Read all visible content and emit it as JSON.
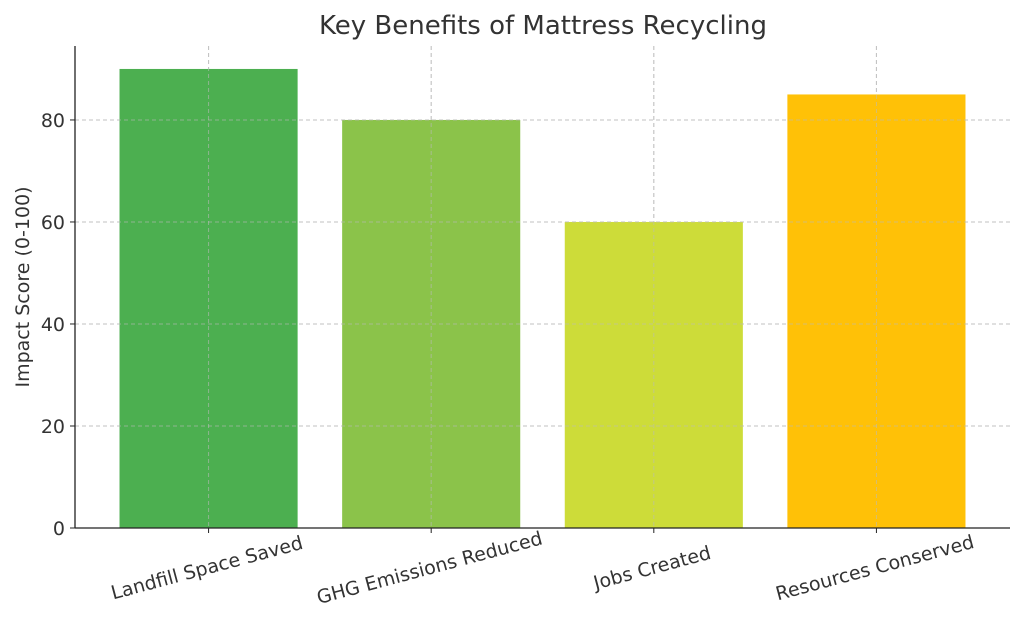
{
  "chart_data": {
    "type": "bar",
    "title": "Key Benefits of Mattress Recycling",
    "xlabel": "",
    "ylabel": "Impact Score (0-100)",
    "categories": [
      "Landfill Space Saved",
      "GHG Emissions Reduced",
      "Jobs Created",
      "Resources Conserved"
    ],
    "values": [
      90,
      80,
      60,
      85
    ],
    "colors": [
      "#4CAF50",
      "#8BC34A",
      "#CDDC39",
      "#FFC107"
    ],
    "ylim": [
      0,
      94.5
    ],
    "yticks": [
      0,
      20,
      40,
      60,
      80
    ],
    "grid": true,
    "xtick_rotation": 15
  }
}
